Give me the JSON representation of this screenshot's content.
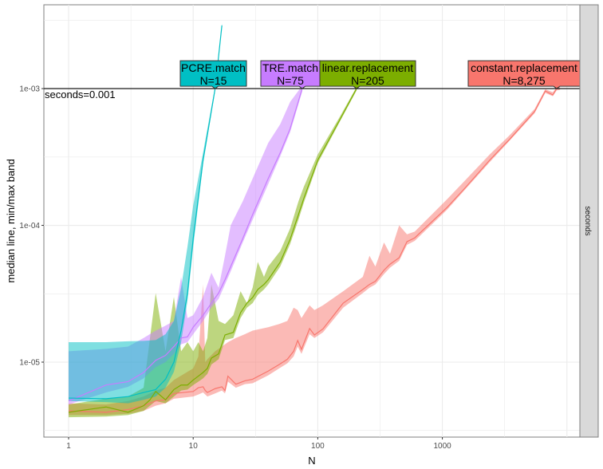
{
  "chart_data": {
    "type": "line",
    "title": "",
    "xlabel": "N",
    "ylabel": "median line, min/max band",
    "x_scale": "log10",
    "y_scale": "log10",
    "xlim": [
      0.633,
      12700
    ],
    "ylim": [
      2.83e-06,
      0.0041
    ],
    "x_ticks": [
      1,
      10,
      100,
      1000
    ],
    "x_tick_labels": [
      "1",
      "10",
      "100",
      "1000"
    ],
    "y_ticks": [
      1e-05,
      0.0001,
      0.001
    ],
    "y_tick_labels": [
      "1e-05",
      "1e-04",
      "1e-03"
    ],
    "grid": true,
    "facet_strip": "seconds",
    "hline": {
      "y": 0.001,
      "label": "seconds=0.001"
    },
    "series": [
      {
        "name": "constant.replacement",
        "color": "#F8766D",
        "label_n": "N=8,275",
        "points": [
          [
            1,
            4.4e-06,
            4.1e-06,
            5e-06
          ],
          [
            2,
            4.3e-06,
            4.1e-06,
            4.9e-06
          ],
          [
            3,
            4.5e-06,
            4.2e-06,
            5.2e-06
          ],
          [
            4,
            4.8e-06,
            4.4e-06,
            5.6e-06
          ],
          [
            5,
            5.2e-06,
            4.8e-06,
            6.2e-06
          ],
          [
            6,
            5.3e-06,
            5e-06,
            6.5e-06
          ],
          [
            7,
            5.9e-06,
            5.4e-06,
            7.4e-06
          ],
          [
            10,
            6.1e-06,
            5.6e-06,
            9e-06
          ],
          [
            11,
            6.5e-06,
            5.8e-06,
            1.1e-05
          ],
          [
            12,
            6.6e-06,
            6e-06,
            3.7e-05
          ],
          [
            12.5,
            6.2e-06,
            5.8e-06,
            1e-05
          ],
          [
            13,
            6e-06,
            5.6e-06,
            1.05e-05
          ],
          [
            15,
            6.4e-06,
            5.9e-06,
            1.2e-05
          ],
          [
            17,
            6.6e-06,
            6.2e-06,
            1.3e-05
          ],
          [
            18,
            6.2e-06,
            5.9e-06,
            1.35e-05
          ],
          [
            19,
            7.9e-06,
            7.2e-06,
            1.4e-05
          ],
          [
            22,
            6.9e-06,
            6.5e-06,
            1.5e-05
          ],
          [
            26,
            7.3e-06,
            6.9e-06,
            1.6e-05
          ],
          [
            30,
            7.5e-06,
            7e-06,
            1.7e-05
          ],
          [
            40,
            8.6e-06,
            8e-06,
            1.8e-05
          ],
          [
            49,
            9.6e-06,
            9e-06,
            1.9e-05
          ],
          [
            57,
            1.05e-05,
            9.8e-06,
            2e-05
          ],
          [
            64,
            1.2e-05,
            1.1e-05,
            2.5e-05
          ],
          [
            69,
            1.44e-05,
            1.3e-05,
            2.4e-05
          ],
          [
            74,
            1.24e-05,
            1.15e-05,
            2.1e-05
          ],
          [
            86,
            1.76e-05,
            1.6e-05,
            2.6e-05
          ],
          [
            94,
            1.58e-05,
            1.5e-05,
            2.4e-05
          ],
          [
            110,
            1.75e-05,
            1.65e-05,
            2.6e-05
          ],
          [
            160,
            2.7e-05,
            2.5e-05,
            3.3e-05
          ],
          [
            230,
            3.4e-05,
            3.2e-05,
            4.2e-05
          ],
          [
            260,
            3.7e-05,
            3.5e-05,
            6e-05
          ],
          [
            290,
            3.9e-05,
            3.7e-05,
            5e-05
          ],
          [
            340,
            4.7e-05,
            4.4e-05,
            7.5e-05
          ],
          [
            380,
            5.2e-05,
            4.9e-05,
            6.2e-05
          ],
          [
            450,
            5.8e-05,
            5.5e-05,
            0.0001
          ],
          [
            520,
            7.6e-05,
            7.2e-05,
            8.6e-05
          ],
          [
            600,
            8.1e-05,
            7.7e-05,
            9e-05
          ],
          [
            1090,
            0.000135,
            0.00013,
            0.000155
          ],
          [
            1500,
            0.000185,
            0.00018,
            0.00021
          ],
          [
            2400,
            0.0003,
            0.00029,
            0.00033
          ],
          [
            3500,
            0.00043,
            0.00042,
            0.00046
          ],
          [
            5500,
            0.00068,
            0.00066,
            0.00071
          ],
          [
            6700,
            0.00096,
            0.00093,
            0.00099
          ],
          [
            7700,
            0.0009,
            0.00088,
            0.00094
          ],
          [
            8275,
            0.001,
            0.00097,
            0.00102
          ],
          [
            8800,
            0.001,
            0.00098,
            0.00103
          ]
        ]
      },
      {
        "name": "linear.replacement",
        "color": "#7CAE00",
        "label_n": "N=205",
        "points": [
          [
            1,
            4.3e-06,
            3.95e-06,
            4.9e-06
          ],
          [
            2,
            4.7e-06,
            4e-06,
            5.4e-06
          ],
          [
            3,
            4.3e-06,
            4.1e-06,
            5.6e-06
          ],
          [
            4,
            4.8e-06,
            4.4e-06,
            6.5e-06
          ],
          [
            4.5,
            5.3e-06,
            4.8e-06,
            1.5e-05
          ],
          [
            5,
            6.1e-06,
            5.2e-06,
            3.2e-05
          ],
          [
            6,
            5.3e-06,
            5e-06,
            1.2e-05
          ],
          [
            7,
            6.3e-06,
            5.6e-06,
            3e-05
          ],
          [
            8,
            6.8e-06,
            6.2e-06,
            1.2e-05
          ],
          [
            9,
            6.8e-06,
            6.3e-06,
            1.4e-05
          ],
          [
            10,
            7.4e-06,
            6.8e-06,
            1.2e-05
          ],
          [
            11,
            7.9e-06,
            7.2e-06,
            1.4e-05
          ],
          [
            12,
            8.4e-06,
            7.6e-06,
            1.2e-05
          ],
          [
            13,
            9e-06,
            8.2e-06,
            1.5e-05
          ],
          [
            14,
            1.07e-05,
            9.6e-06,
            3.7e-05
          ],
          [
            16,
            1.15e-05,
            1.05e-05,
            2e-05
          ],
          [
            18,
            1.58e-05,
            1.45e-05,
            1.9e-05
          ],
          [
            21,
            1.65e-05,
            1.5e-05,
            2.2e-05
          ],
          [
            24,
            2.3e-05,
            2.1e-05,
            3.3e-05
          ],
          [
            27,
            2.7e-05,
            2.5e-05,
            2.4e-05
          ],
          [
            30,
            2.97e-05,
            2.7e-05,
            3.5e-05
          ],
          [
            33,
            3.4e-05,
            3.1e-05,
            5.4e-05
          ],
          [
            37,
            3.7e-05,
            3.4e-05,
            4.2e-05
          ],
          [
            40,
            4e-05,
            3.7e-05,
            5e-05
          ],
          [
            50,
            5.4e-05,
            5e-05,
            6.5e-05
          ],
          [
            60,
            7.9e-05,
            7.3e-05,
            9.5e-05
          ],
          [
            70,
            0.00012,
            0.00011,
            0.00015
          ],
          [
            77,
            0.000156,
            0.000145,
            0.00019
          ],
          [
            100,
            0.0003,
            0.000285,
            0.00033
          ],
          [
            150,
            0.00059,
            0.00057,
            0.00062
          ],
          [
            205,
            0.001,
            0.00097,
            0.00103
          ]
        ]
      },
      {
        "name": "TRE.match",
        "color": "#C77CFF",
        "label_n": "N=75",
        "points": [
          [
            1,
            5.2e-06,
            4.9e-06,
            1.2e-05
          ],
          [
            2,
            6.8e-06,
            6e-06,
            1.25e-05
          ],
          [
            3,
            7.2e-06,
            6.6e-06,
            1.3e-05
          ],
          [
            4,
            8.4e-06,
            7.6e-06,
            1.5e-05
          ],
          [
            5,
            1.03e-05,
            9.2e-06,
            1.7e-05
          ],
          [
            6,
            1.12e-05,
            1e-05,
            1.85e-05
          ],
          [
            7,
            1.3e-05,
            1.15e-05,
            2e-05
          ],
          [
            8,
            1.5e-05,
            1.35e-05,
            4.2e-05
          ],
          [
            9,
            1.53e-05,
            1.4e-05,
            2.1e-05
          ],
          [
            10,
            1.8e-05,
            1.6e-05,
            2.2e-05
          ],
          [
            12,
            2.2e-05,
            2e-05,
            3e-05
          ],
          [
            14,
            2.7e-05,
            2.5e-05,
            4.5e-05
          ],
          [
            16,
            3.2e-05,
            2.9e-05,
            3.5e-05
          ],
          [
            18,
            4e-05,
            3.7e-05,
            6e-05
          ],
          [
            20,
            5e-05,
            4.6e-05,
            0.0001
          ],
          [
            25,
            8e-05,
            7.5e-05,
            0.00015
          ],
          [
            30,
            0.00012,
            0.00011,
            0.00022
          ],
          [
            40,
            0.00022,
            0.0002,
            0.0004
          ],
          [
            50,
            0.00034,
            0.00032,
            0.00055
          ],
          [
            60,
            0.00051,
            0.00048,
            0.0008
          ],
          [
            75,
            0.001,
            0.00095,
            0.00105
          ]
        ]
      },
      {
        "name": "PCRE.match",
        "color": "#00BFC4",
        "label_n": "N=15",
        "points": [
          [
            1,
            5.46e-06,
            5.2e-06,
            1.4e-05
          ],
          [
            2,
            5.4e-06,
            5.1e-06,
            1.4e-05
          ],
          [
            3,
            5.6e-06,
            5e-06,
            1.42e-05
          ],
          [
            4,
            6e-06,
            5.3e-06,
            1.43e-05
          ],
          [
            5,
            6.3e-06,
            5.6e-06,
            1.45e-05
          ],
          [
            6,
            7.5e-06,
            6.5e-06,
            1.6e-05
          ],
          [
            7,
            1e-05,
            8.5e-06,
            2e-05
          ],
          [
            8,
            1.7e-05,
            1.4e-05,
            3.5e-05
          ],
          [
            9,
            3.2e-05,
            2.8e-05,
            7e-05
          ],
          [
            10,
            8e-05,
            7e-05,
            0.00014
          ],
          [
            12,
            0.0003,
            0.00028,
            0.00034
          ],
          [
            15,
            0.001,
            0.00096,
            0.00104
          ],
          [
            17,
            0.0029,
            0.0028,
            0.003
          ]
        ]
      }
    ]
  }
}
